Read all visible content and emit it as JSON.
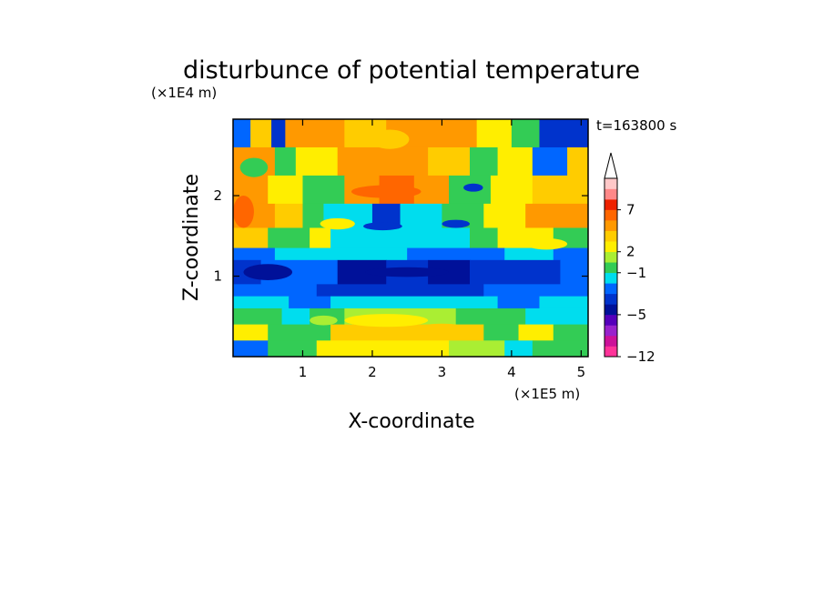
{
  "chart_data": {
    "type": "heatmap",
    "title": "disturbunce of potential temperature",
    "xlabel": "X-coordinate",
    "ylabel": "Z-coordinate",
    "x_unit": "(×1E5 m)",
    "y_unit": "(×1E4 m)",
    "time_label": "t=163800 s",
    "xlim": [
      0,
      5.1
    ],
    "ylim": [
      0,
      2.95
    ],
    "x_ticks": [
      "1",
      "2",
      "3",
      "4",
      "5"
    ],
    "y_ticks": [
      "1",
      "2"
    ],
    "colorbar": {
      "extend_max": true,
      "labels": [
        "7",
        "2",
        "−1",
        "−5",
        "−12"
      ],
      "colors": [
        "#ff3399",
        "#cc1199",
        "#9922cc",
        "#5500bb",
        "#001199",
        "#0033cc",
        "#0066ff",
        "#00ddee",
        "#33cc55",
        "#aaee33",
        "#ffee00",
        "#ffcc00",
        "#ff9900",
        "#ff6600",
        "#ee2200",
        "#ff8888",
        "#ffc8c8"
      ]
    },
    "rows": [
      {
        "y_range": [
          2.6,
          2.95
        ],
        "bands": [
          [
            "0.00",
            "#0066ff"
          ],
          [
            "0.25",
            "#ffcc00"
          ],
          [
            "0.55",
            "#0033cc"
          ],
          [
            "0.75",
            "#ff9900"
          ],
          [
            "1.6",
            "#ffcc00"
          ],
          [
            "2.2",
            "#ff9900"
          ],
          [
            "3.5",
            "#ffee00"
          ],
          [
            "4.0",
            "#33cc55"
          ],
          [
            "4.4",
            "#0033cc"
          ],
          [
            "5.1",
            "#0033cc"
          ]
        ]
      },
      {
        "y_range": [
          2.25,
          2.6
        ],
        "bands": [
          [
            "0.00",
            "#ff9900"
          ],
          [
            "0.6",
            "#33cc55"
          ],
          [
            "0.9",
            "#ffee00"
          ],
          [
            "1.5",
            "#ff9900"
          ],
          [
            "2.8",
            "#ffcc00"
          ],
          [
            "3.4",
            "#33cc55"
          ],
          [
            "3.8",
            "#ffee00"
          ],
          [
            "4.3",
            "#0066ff"
          ],
          [
            "4.8",
            "#ffcc00"
          ],
          [
            "5.1",
            "#ffcc00"
          ]
        ]
      },
      {
        "y_range": [
          1.9,
          2.25
        ],
        "bands": [
          [
            "0.00",
            "#ff9900"
          ],
          [
            "0.5",
            "#ffee00"
          ],
          [
            "1.0",
            "#33cc55"
          ],
          [
            "1.6",
            "#ff9900"
          ],
          [
            "2.1",
            "#ff6600"
          ],
          [
            "2.6",
            "#ff9900"
          ],
          [
            "3.1",
            "#33cc55"
          ],
          [
            "3.7",
            "#ffee00"
          ],
          [
            "4.3",
            "#ffcc00"
          ],
          [
            "5.1",
            "#ffcc00"
          ]
        ]
      },
      {
        "y_range": [
          1.6,
          1.9
        ],
        "bands": [
          [
            "0.00",
            "#ff9900"
          ],
          [
            "0.6",
            "#ffcc00"
          ],
          [
            "1.0",
            "#33cc55"
          ],
          [
            "1.3",
            "#00ddee"
          ],
          [
            "2.0",
            "#0033cc"
          ],
          [
            "2.4",
            "#00ddee"
          ],
          [
            "3.0",
            "#33cc55"
          ],
          [
            "3.6",
            "#ffee00"
          ],
          [
            "4.2",
            "#ff9900"
          ],
          [
            "5.1",
            "#ff9900"
          ]
        ]
      },
      {
        "y_range": [
          1.35,
          1.6
        ],
        "bands": [
          [
            "0.00",
            "#ffcc00"
          ],
          [
            "0.5",
            "#33cc55"
          ],
          [
            "1.1",
            "#ffee00"
          ],
          [
            "1.4",
            "#00ddee"
          ],
          [
            "3.4",
            "#33cc55"
          ],
          [
            "3.8",
            "#ffee00"
          ],
          [
            "4.6",
            "#33cc55"
          ],
          [
            "5.1",
            "#33cc55"
          ]
        ]
      },
      {
        "y_range": [
          1.2,
          1.35
        ],
        "bands": [
          [
            "0.00",
            "#0066ff"
          ],
          [
            "0.6",
            "#00ddee"
          ],
          [
            "2.5",
            "#0066ff"
          ],
          [
            "3.9",
            "#00ddee"
          ],
          [
            "4.6",
            "#0066ff"
          ],
          [
            "5.1",
            "#0066ff"
          ]
        ]
      },
      {
        "y_range": [
          0.9,
          1.2
        ],
        "bands": [
          [
            "0.00",
            "#0033cc"
          ],
          [
            "0.4",
            "#0066ff"
          ],
          [
            "1.5",
            "#001199"
          ],
          [
            "2.2",
            "#0033cc"
          ],
          [
            "2.8",
            "#001199"
          ],
          [
            "3.4",
            "#0033cc"
          ],
          [
            "4.7",
            "#0066ff"
          ],
          [
            "5.1",
            "#0066ff"
          ]
        ]
      },
      {
        "y_range": [
          0.75,
          0.9
        ],
        "bands": [
          [
            "0.00",
            "#0066ff"
          ],
          [
            "1.2",
            "#0033cc"
          ],
          [
            "3.6",
            "#0066ff"
          ],
          [
            "5.1",
            "#0066ff"
          ]
        ]
      },
      {
        "y_range": [
          0.6,
          0.75
        ],
        "bands": [
          [
            "0.00",
            "#00ddee"
          ],
          [
            "0.8",
            "#0066ff"
          ],
          [
            "1.4",
            "#00ddee"
          ],
          [
            "3.8",
            "#0066ff"
          ],
          [
            "4.4",
            "#00ddee"
          ],
          [
            "5.1",
            "#00ddee"
          ]
        ]
      },
      {
        "y_range": [
          0.4,
          0.6
        ],
        "bands": [
          [
            "0.00",
            "#33cc55"
          ],
          [
            "0.7",
            "#00ddee"
          ],
          [
            "1.1",
            "#33cc55"
          ],
          [
            "1.6",
            "#aaee33"
          ],
          [
            "3.2",
            "#33cc55"
          ],
          [
            "4.2",
            "#00ddee"
          ],
          [
            "5.1",
            "#00ddee"
          ]
        ]
      },
      {
        "y_range": [
          0.2,
          0.4
        ],
        "bands": [
          [
            "0.00",
            "#ffee00"
          ],
          [
            "0.5",
            "#33cc55"
          ],
          [
            "1.4",
            "#ffcc00"
          ],
          [
            "3.6",
            "#33cc55"
          ],
          [
            "4.1",
            "#ffee00"
          ],
          [
            "4.6",
            "#33cc55"
          ],
          [
            "5.1",
            "#33cc55"
          ]
        ]
      },
      {
        "y_range": [
          0.0,
          0.2
        ],
        "bands": [
          [
            "0.00",
            "#0066ff"
          ],
          [
            "0.5",
            "#33cc55"
          ],
          [
            "1.2",
            "#ffee00"
          ],
          [
            "3.1",
            "#aaee33"
          ],
          [
            "3.9",
            "#00ddee"
          ],
          [
            "4.3",
            "#33cc55"
          ],
          [
            "5.1",
            "#33cc55"
          ]
        ]
      }
    ],
    "blobs": [
      {
        "x": 2.25,
        "y": 2.7,
        "rx": 0.28,
        "ry": 0.12,
        "color": "#ffcc00"
      },
      {
        "x": 2.2,
        "y": 2.05,
        "rx": 0.5,
        "ry": 0.08,
        "color": "#ff6600"
      },
      {
        "x": 1.5,
        "y": 1.65,
        "rx": 0.25,
        "ry": 0.07,
        "color": "#ffee00"
      },
      {
        "x": 2.15,
        "y": 1.62,
        "rx": 0.28,
        "ry": 0.05,
        "color": "#0033cc"
      },
      {
        "x": 3.2,
        "y": 1.65,
        "rx": 0.2,
        "ry": 0.05,
        "color": "#0033cc"
      },
      {
        "x": 3.45,
        "y": 2.1,
        "rx": 0.14,
        "ry": 0.05,
        "color": "#0033cc"
      },
      {
        "x": 0.5,
        "y": 1.05,
        "rx": 0.35,
        "ry": 0.1,
        "color": "#001199"
      },
      {
        "x": 2.5,
        "y": 1.05,
        "rx": 0.6,
        "ry": 0.06,
        "color": "#001199"
      },
      {
        "x": 2.2,
        "y": 0.45,
        "rx": 0.6,
        "ry": 0.08,
        "color": "#ffee00"
      },
      {
        "x": 3.0,
        "y": 0.35,
        "rx": 0.35,
        "ry": 0.06,
        "color": "#ffcc00"
      },
      {
        "x": 1.3,
        "y": 0.45,
        "rx": 0.2,
        "ry": 0.06,
        "color": "#aaee33"
      },
      {
        "x": 4.5,
        "y": 1.4,
        "rx": 0.3,
        "ry": 0.07,
        "color": "#ffee00"
      },
      {
        "x": 0.15,
        "y": 1.8,
        "rx": 0.15,
        "ry": 0.2,
        "color": "#ff6600"
      },
      {
        "x": 0.3,
        "y": 2.35,
        "rx": 0.2,
        "ry": 0.12,
        "color": "#33cc55"
      }
    ]
  }
}
